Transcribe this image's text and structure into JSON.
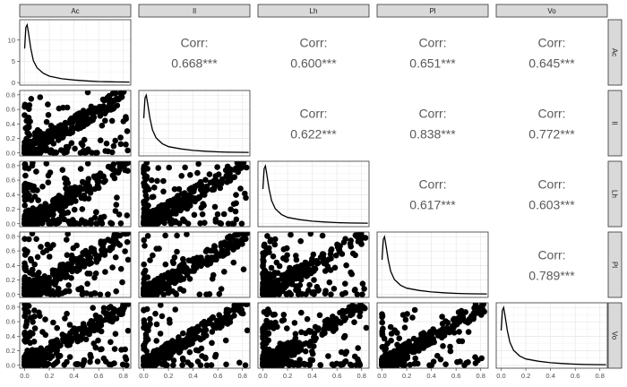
{
  "chart_data": {
    "type": "scatter-matrix",
    "variables": [
      "Ac",
      "Il",
      "Lh",
      "Pl",
      "Vo"
    ],
    "corr_label": "Corr:",
    "correlations": [
      {
        "row": 0,
        "col": 1,
        "value": "0.668***"
      },
      {
        "row": 0,
        "col": 2,
        "value": "0.600***"
      },
      {
        "row": 0,
        "col": 3,
        "value": "0.651***"
      },
      {
        "row": 0,
        "col": 4,
        "value": "0.645***"
      },
      {
        "row": 1,
        "col": 2,
        "value": "0.622***"
      },
      {
        "row": 1,
        "col": 3,
        "value": "0.838***"
      },
      {
        "row": 1,
        "col": 4,
        "value": "0.772***"
      },
      {
        "row": 2,
        "col": 3,
        "value": "0.617***"
      },
      {
        "row": 2,
        "col": 4,
        "value": "0.603***"
      },
      {
        "row": 3,
        "col": 4,
        "value": "0.789***"
      }
    ],
    "x_ticks": [
      "0.0",
      "0.2",
      "0.4",
      "0.6",
      "0.8"
    ],
    "x_tick_values": [
      0,
      0.2,
      0.4,
      0.6,
      0.8
    ],
    "x_range": [
      -0.04,
      0.86
    ],
    "y_ticks_scatter": [
      "0.0",
      "0.2",
      "0.4",
      "0.6",
      "0.8"
    ],
    "y_tick_values_scatter": [
      0,
      0.2,
      0.4,
      0.6,
      0.8
    ],
    "y_range_scatter": [
      -0.04,
      0.86
    ],
    "density_Ac": {
      "y_ticks": [
        "0",
        "5",
        "10"
      ],
      "y_tick_values": [
        0,
        5,
        10
      ],
      "y_range": [
        -0.6,
        14.8
      ],
      "curve": [
        [
          0.0,
          8.0
        ],
        [
          0.01,
          13.0
        ],
        [
          0.02,
          13.6
        ],
        [
          0.03,
          12.0
        ],
        [
          0.05,
          8.0
        ],
        [
          0.07,
          5.2
        ],
        [
          0.1,
          3.5
        ],
        [
          0.15,
          2.2
        ],
        [
          0.2,
          1.5
        ],
        [
          0.3,
          0.9
        ],
        [
          0.4,
          0.6
        ],
        [
          0.5,
          0.4
        ],
        [
          0.6,
          0.25
        ],
        [
          0.7,
          0.18
        ],
        [
          0.85,
          0.12
        ]
      ]
    },
    "density_shape": [
      [
        0.0,
        0.6
      ],
      [
        0.01,
        0.95
      ],
      [
        0.02,
        1.0
      ],
      [
        0.03,
        0.88
      ],
      [
        0.05,
        0.6
      ],
      [
        0.07,
        0.4
      ],
      [
        0.1,
        0.26
      ],
      [
        0.15,
        0.16
      ],
      [
        0.2,
        0.11
      ],
      [
        0.3,
        0.07
      ],
      [
        0.4,
        0.045
      ],
      [
        0.5,
        0.03
      ],
      [
        0.6,
        0.02
      ],
      [
        0.7,
        0.014
      ],
      [
        0.85,
        0.01
      ]
    ],
    "scatter_point_count": 420
  }
}
